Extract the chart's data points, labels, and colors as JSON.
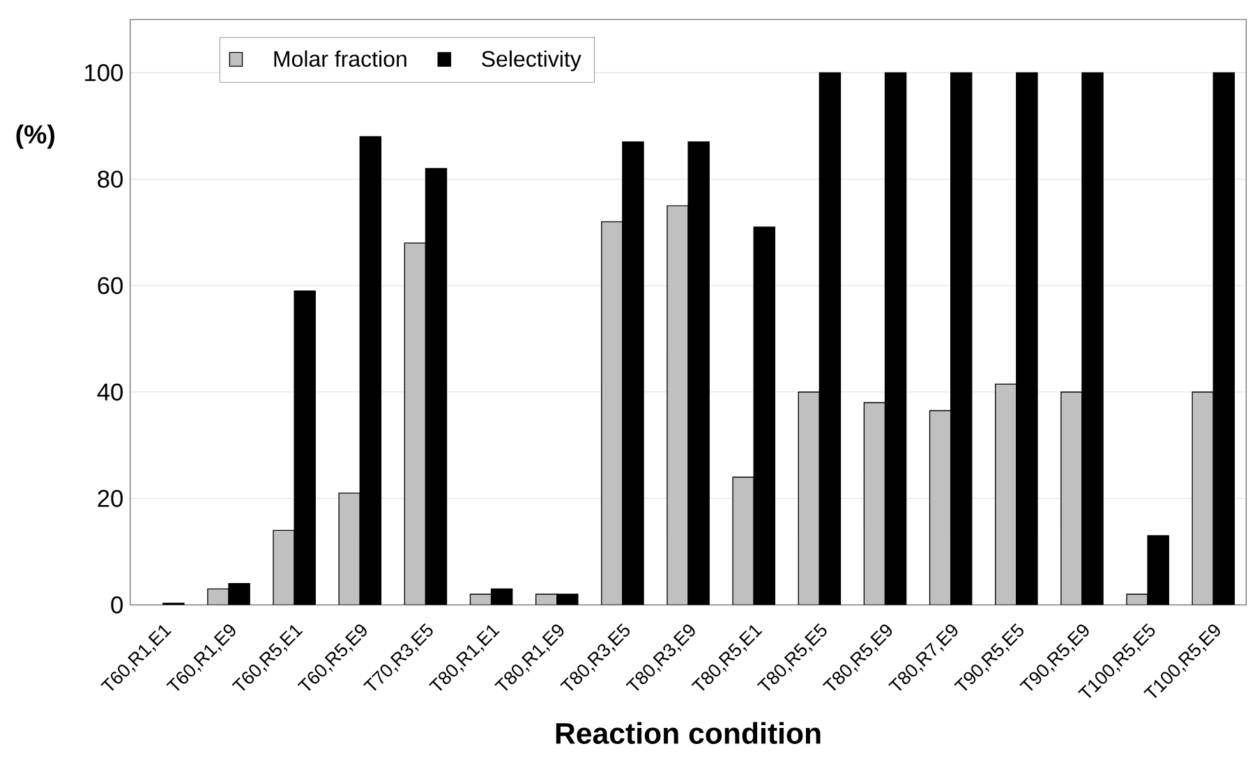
{
  "chart_data": {
    "type": "bar",
    "xlabel": "Reaction condition",
    "ylabel": "(%)",
    "categories": [
      "T60,R1,E1",
      "T60,R1,E9",
      "T60,R5,E1",
      "T60,R5,E9",
      "T70,R3,E5",
      "T80,R1,E1",
      "T80,R1,E9",
      "T80,R3,E5",
      "T80,R3,E9",
      "T80,R5,E1",
      "T80,R5,E5",
      "T80,R5,E9",
      "T80,R7,E9",
      "T90,R5,E5",
      "T90,R5,E9",
      "T100,R5,E5",
      "T100,R5,E9"
    ],
    "series": [
      {
        "name": "Molar fraction",
        "color": "#c0c0c0",
        "values": [
          null,
          3,
          14,
          21,
          68,
          2,
          2,
          72,
          75,
          24,
          40,
          38,
          36.5,
          41.5,
          40,
          2,
          40
        ]
      },
      {
        "name": "Selectivity",
        "color": "#000000",
        "values": [
          0.3,
          4,
          59,
          88,
          82,
          3,
          2,
          87,
          87,
          71,
          100,
          100,
          100,
          100,
          100,
          13,
          100
        ]
      }
    ],
    "ylim": [
      0,
      110
    ],
    "yticks": [
      0,
      20,
      40,
      60,
      80,
      100
    ],
    "grid": "y",
    "legend": "top left"
  }
}
